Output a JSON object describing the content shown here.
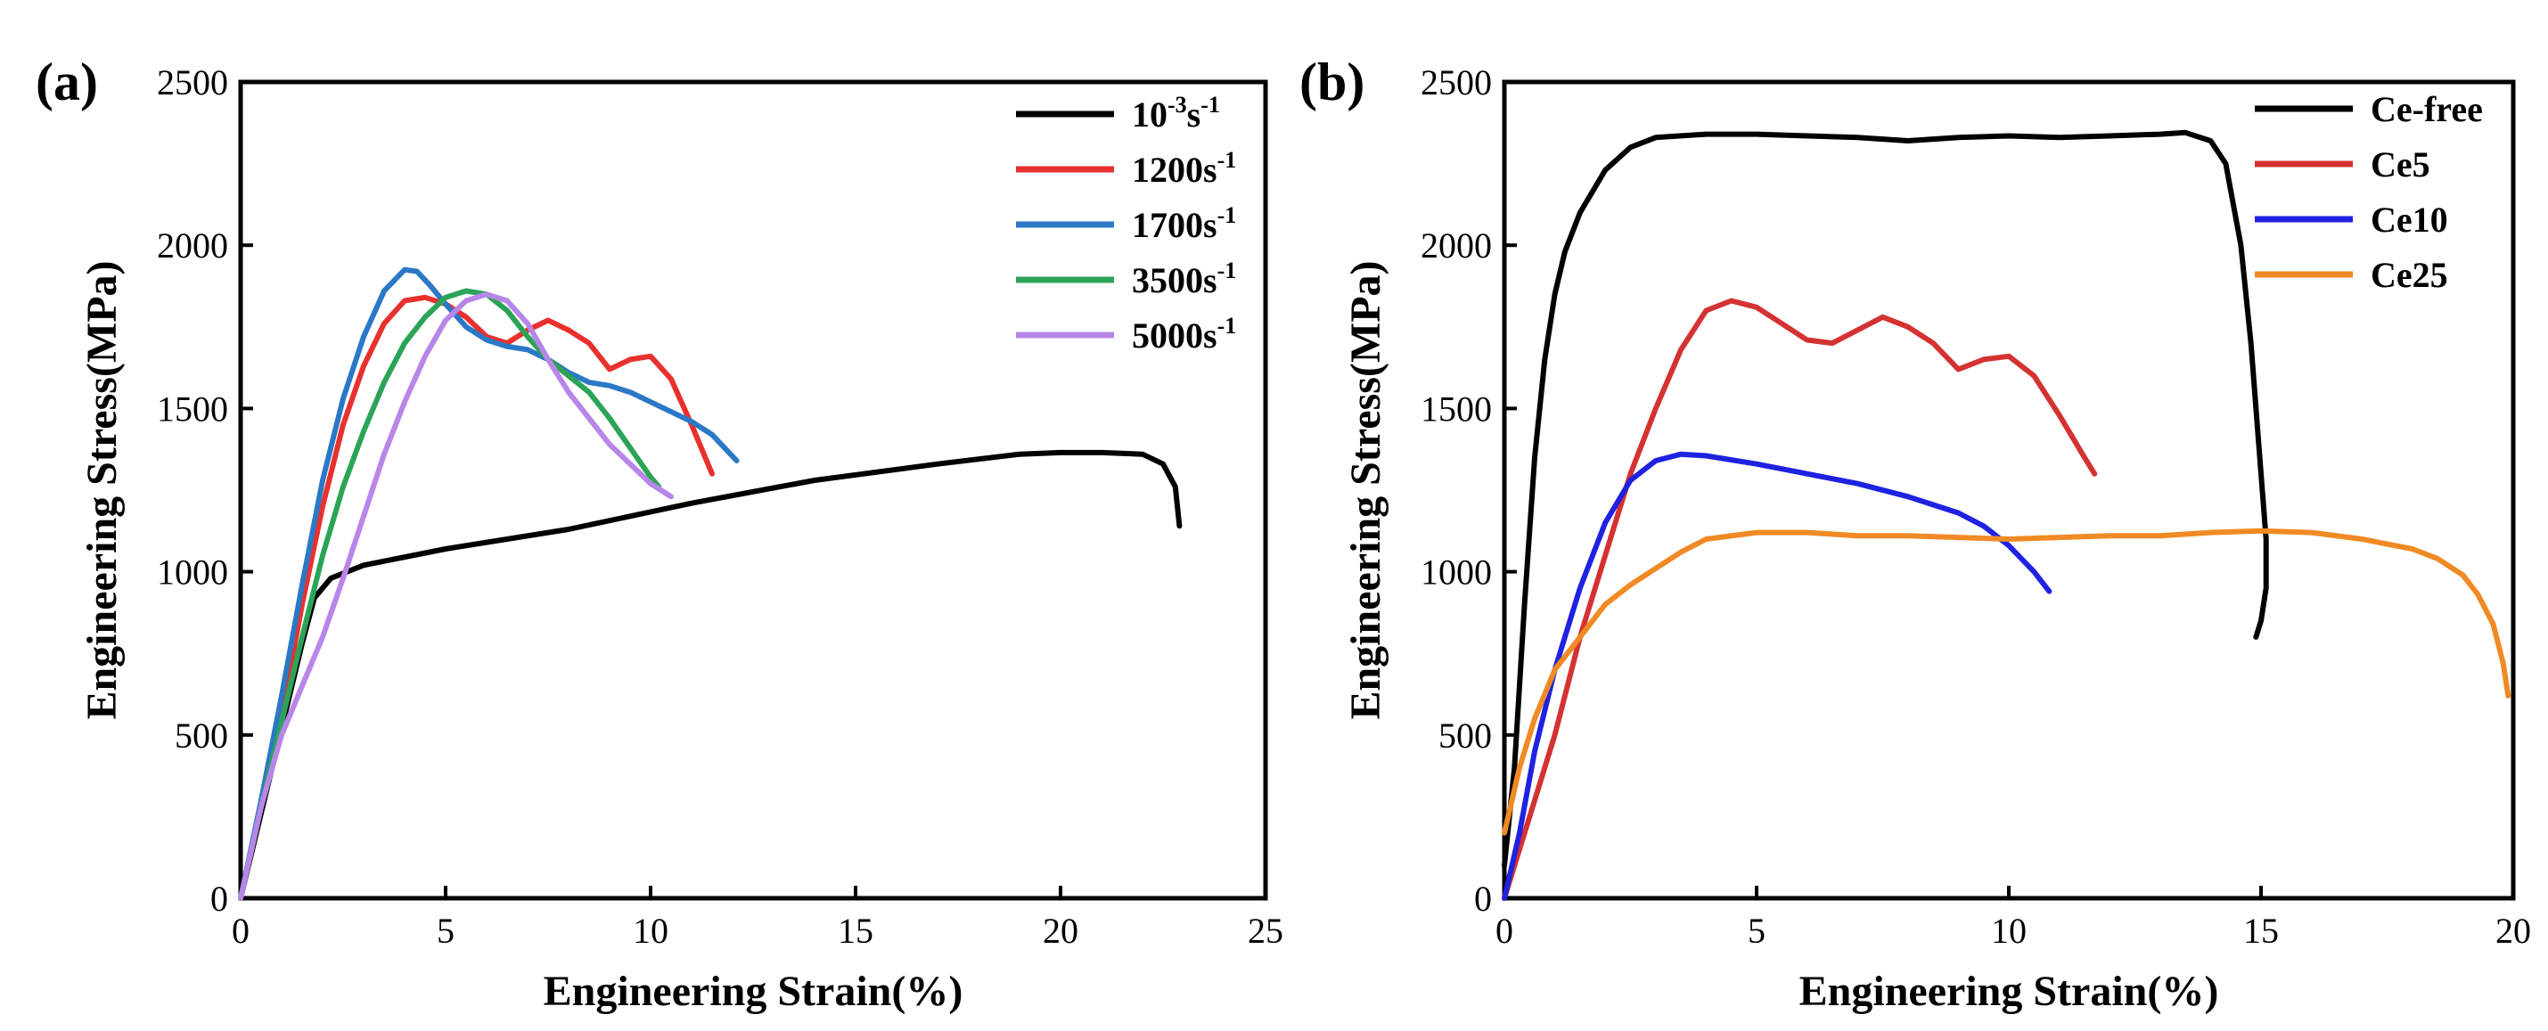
{
  "chart_data": [
    {
      "type": "line",
      "panel_label": "(a)",
      "xlabel": "Engineering Strain(%)",
      "ylabel": "Engineering Stress(MPa)",
      "xlim": [
        0,
        25
      ],
      "ylim": [
        0,
        2500
      ],
      "xticks": [
        0,
        5,
        10,
        15,
        20,
        25
      ],
      "yticks": [
        0,
        500,
        1000,
        1500,
        2000,
        2500
      ],
      "legend_position": "top-right",
      "series": [
        {
          "name": "10",
          "sup1": "-3",
          "mid": "s",
          "sup2": "-1",
          "color": "#000000",
          "x": [
            0,
            0.5,
            1.0,
            1.5,
            1.8,
            2.2,
            3,
            5,
            8,
            11,
            14,
            17,
            19,
            20,
            21,
            22,
            22.5,
            22.8,
            22.9
          ],
          "y": [
            0,
            260,
            520,
            780,
            920,
            980,
            1020,
            1070,
            1130,
            1210,
            1280,
            1330,
            1360,
            1365,
            1365,
            1360,
            1330,
            1260,
            1140
          ]
        },
        {
          "name": "1200",
          "sup1": "",
          "mid": "s",
          "sup2": "-1",
          "color": "#e8312e",
          "x": [
            0,
            0.5,
            1,
            1.5,
            2,
            2.5,
            3,
            3.5,
            4,
            4.5,
            5,
            5.5,
            6,
            6.5,
            7,
            7.5,
            8,
            8.5,
            9,
            9.5,
            10,
            10.5,
            11,
            11.5
          ],
          "y": [
            0,
            280,
            560,
            900,
            1200,
            1450,
            1630,
            1760,
            1830,
            1840,
            1820,
            1780,
            1720,
            1700,
            1740,
            1770,
            1740,
            1700,
            1620,
            1650,
            1660,
            1590,
            1450,
            1300
          ]
        },
        {
          "name": "1700",
          "sup1": "",
          "mid": "s",
          "sup2": "-1",
          "color": "#2b78c7",
          "x": [
            0,
            0.5,
            1,
            1.5,
            2,
            2.5,
            3,
            3.5,
            4,
            4.3,
            4.6,
            5,
            5.5,
            6,
            6.5,
            7,
            7.5,
            8,
            8.5,
            9,
            9.5,
            10,
            10.5,
            11,
            11.5,
            12.1
          ],
          "y": [
            0,
            300,
            620,
            960,
            1280,
            1530,
            1720,
            1860,
            1925,
            1920,
            1880,
            1820,
            1750,
            1710,
            1690,
            1680,
            1650,
            1610,
            1580,
            1570,
            1550,
            1520,
            1490,
            1460,
            1420,
            1340
          ]
        },
        {
          "name": "3500",
          "sup1": "",
          "mid": "s",
          "sup2": "-1",
          "color": "#2ca458",
          "x": [
            0,
            0.5,
            1,
            1.5,
            2,
            2.5,
            3,
            3.5,
            4,
            4.5,
            5,
            5.5,
            6,
            6.5,
            7,
            7.5,
            8,
            8.5,
            9,
            9.5,
            10,
            10.2
          ],
          "y": [
            0,
            280,
            540,
            800,
            1050,
            1260,
            1430,
            1580,
            1700,
            1780,
            1840,
            1860,
            1850,
            1800,
            1720,
            1650,
            1600,
            1550,
            1470,
            1380,
            1290,
            1260
          ]
        },
        {
          "name": "5000",
          "sup1": "",
          "mid": "s",
          "sup2": "-1",
          "color": "#b886e8",
          "x": [
            0,
            0.5,
            1,
            1.5,
            2,
            2.5,
            3,
            3.5,
            4,
            4.5,
            5,
            5.5,
            6,
            6.5,
            7,
            7.5,
            8,
            8.5,
            9,
            9.5,
            10,
            10.5
          ],
          "y": [
            0,
            280,
            500,
            650,
            800,
            980,
            1170,
            1360,
            1520,
            1660,
            1770,
            1830,
            1850,
            1830,
            1760,
            1650,
            1550,
            1470,
            1390,
            1330,
            1270,
            1230
          ]
        }
      ]
    },
    {
      "type": "line",
      "panel_label": "(b)",
      "xlabel": "Engineering Strain(%)",
      "ylabel": "Engineering Stress(MPa)",
      "xlim": [
        0,
        20
      ],
      "ylim": [
        0,
        2500
      ],
      "xticks": [
        0,
        5,
        10,
        15,
        20
      ],
      "yticks": [
        0,
        500,
        1000,
        1500,
        2000,
        2500
      ],
      "legend_position": "top-right",
      "series": [
        {
          "name": "Ce-free",
          "color": "#000000",
          "x": [
            0,
            0.2,
            0.4,
            0.6,
            0.8,
            1.0,
            1.2,
            1.5,
            2,
            2.5,
            3,
            4,
            5,
            6,
            7,
            8,
            9,
            10,
            11,
            12,
            13,
            13.5,
            14,
            14.3,
            14.6,
            14.8,
            15.0,
            15.1,
            15.1,
            15.0,
            14.9
          ],
          "y": [
            100,
            400,
            900,
            1350,
            1650,
            1850,
            1980,
            2100,
            2230,
            2300,
            2330,
            2340,
            2340,
            2335,
            2330,
            2320,
            2330,
            2335,
            2330,
            2335,
            2340,
            2345,
            2320,
            2250,
            2000,
            1700,
            1300,
            1100,
            950,
            850,
            800
          ]
        },
        {
          "name": "Ce5",
          "color": "#d43232",
          "x": [
            0,
            0.3,
            0.6,
            1,
            1.5,
            2,
            2.5,
            3,
            3.5,
            4,
            4.5,
            5,
            5.5,
            6,
            6.5,
            7,
            7.5,
            8,
            8.5,
            9,
            9.5,
            10,
            10.5,
            11,
            11.5,
            11.7
          ],
          "y": [
            0,
            150,
            300,
            500,
            800,
            1050,
            1300,
            1500,
            1680,
            1800,
            1830,
            1810,
            1760,
            1710,
            1700,
            1740,
            1780,
            1750,
            1700,
            1620,
            1650,
            1660,
            1600,
            1480,
            1350,
            1300
          ]
        },
        {
          "name": "Ce10",
          "color": "#1f22e0",
          "x": [
            0,
            0.3,
            0.6,
            1,
            1.5,
            2,
            2.5,
            3,
            3.5,
            4,
            5,
            6,
            7,
            8,
            9,
            9.5,
            10,
            10.5,
            10.8
          ],
          "y": [
            0,
            200,
            450,
            700,
            950,
            1150,
            1280,
            1340,
            1360,
            1355,
            1330,
            1300,
            1270,
            1230,
            1180,
            1140,
            1080,
            1000,
            940
          ]
        },
        {
          "name": "Ce25",
          "color": "#f08a24",
          "x": [
            0,
            0.3,
            0.6,
            1,
            1.5,
            2,
            2.5,
            3,
            3.5,
            4,
            5,
            6,
            7,
            8,
            9,
            10,
            11,
            12,
            13,
            14,
            15,
            16,
            17,
            18,
            18.5,
            19,
            19.3,
            19.6,
            19.8,
            19.9
          ],
          "y": [
            200,
            400,
            550,
            700,
            800,
            900,
            960,
            1010,
            1060,
            1100,
            1120,
            1120,
            1110,
            1110,
            1105,
            1100,
            1105,
            1110,
            1110,
            1120,
            1125,
            1120,
            1100,
            1070,
            1040,
            990,
            930,
            840,
            720,
            620
          ]
        }
      ]
    }
  ]
}
